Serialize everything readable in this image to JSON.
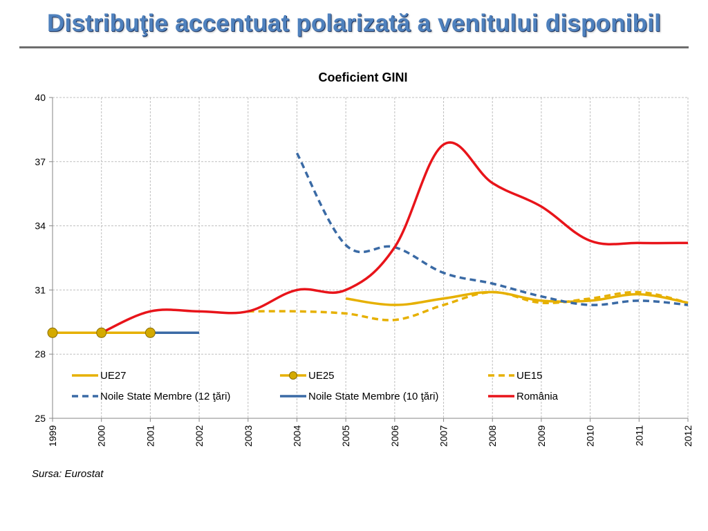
{
  "slide": {
    "title": "Distribuţie accentuat polarizată a venitului disponibil",
    "source": "Sursa: Eurostat"
  },
  "colors": {
    "gold": "#e6b000",
    "gold_marker": "#d4aa00",
    "blue": "#3a6aa5",
    "red": "#e8141a",
    "grid": "#bfbfbf",
    "title": "#4f81bd"
  },
  "chart_data": {
    "type": "line",
    "title": "Coeficient GINI",
    "xlabel": "",
    "ylabel": "",
    "x": [
      "1999",
      "2000",
      "2001",
      "2002",
      "2003",
      "2004",
      "2005",
      "2006",
      "2007",
      "2008",
      "2009",
      "2010",
      "2011",
      "2012"
    ],
    "ylim": [
      25,
      40
    ],
    "yticks": [
      25,
      28,
      31,
      34,
      37,
      40
    ],
    "grid": true,
    "legend_position": "bottom-inside",
    "series": [
      {
        "name": "UE27",
        "style": "solid",
        "color": "#e6b000",
        "marker": false,
        "values": [
          null,
          null,
          null,
          null,
          null,
          null,
          30.6,
          30.3,
          30.6,
          30.9,
          30.5,
          30.5,
          30.8,
          30.4
        ]
      },
      {
        "name": "UE25",
        "style": "solid",
        "color": "#e6b000",
        "marker": true,
        "values": [
          29,
          29,
          29,
          null,
          null,
          null,
          null,
          null,
          null,
          null,
          null,
          null,
          null,
          null
        ]
      },
      {
        "name": "UE15",
        "style": "dash",
        "color": "#e6b000",
        "marker": false,
        "values": [
          29,
          29,
          29,
          null,
          30,
          30,
          29.9,
          29.6,
          30.3,
          30.9,
          30.4,
          30.6,
          30.9,
          30.4
        ]
      },
      {
        "name": "Noile State Membre (12 ţări)",
        "style": "dash",
        "color": "#3a6aa5",
        "marker": false,
        "values": [
          null,
          null,
          null,
          null,
          null,
          37.4,
          33.1,
          33.0,
          31.8,
          31.3,
          30.7,
          30.3,
          30.5,
          30.3
        ]
      },
      {
        "name": "Noile State Membre (10 ţări)",
        "style": "solid",
        "color": "#3a6aa5",
        "marker": false,
        "values": [
          null,
          null,
          29,
          29,
          null,
          null,
          null,
          null,
          null,
          null,
          null,
          null,
          null,
          null
        ]
      },
      {
        "name": "România",
        "style": "solid",
        "color": "#e8141a",
        "marker": false,
        "values": [
          null,
          29,
          30,
          30,
          30,
          31,
          31,
          33,
          37.8,
          36,
          34.9,
          33.3,
          33.2,
          33.2
        ]
      }
    ]
  }
}
